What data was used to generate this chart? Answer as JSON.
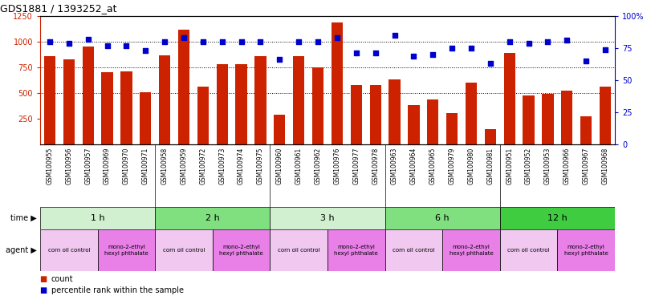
{
  "title": "GDS1881 / 1393252_at",
  "samples": [
    "GSM100955",
    "GSM100956",
    "GSM100957",
    "GSM100969",
    "GSM100970",
    "GSM100971",
    "GSM100958",
    "GSM100959",
    "GSM100972",
    "GSM100973",
    "GSM100974",
    "GSM100975",
    "GSM100960",
    "GSM100961",
    "GSM100962",
    "GSM100976",
    "GSM100977",
    "GSM100978",
    "GSM100963",
    "GSM100964",
    "GSM100965",
    "GSM100979",
    "GSM100980",
    "GSM100981",
    "GSM100951",
    "GSM100952",
    "GSM100953",
    "GSM100966",
    "GSM100967",
    "GSM100968"
  ],
  "counts": [
    860,
    825,
    950,
    700,
    710,
    505,
    870,
    1120,
    565,
    780,
    785,
    860,
    290,
    860,
    750,
    1190,
    575,
    575,
    630,
    380,
    440,
    305,
    605,
    145,
    890,
    475,
    490,
    520,
    270,
    565
  ],
  "percentiles": [
    80,
    79,
    82,
    77,
    77,
    73,
    80,
    83,
    80,
    80,
    80,
    80,
    66,
    80,
    80,
    83,
    71,
    71,
    85,
    69,
    70,
    75,
    75,
    63,
    80,
    79,
    80,
    81,
    65,
    74
  ],
  "time_groups": [
    {
      "label": "1 h",
      "start": 0,
      "end": 6,
      "color": "#d0f0d0"
    },
    {
      "label": "2 h",
      "start": 6,
      "end": 12,
      "color": "#80e080"
    },
    {
      "label": "3 h",
      "start": 12,
      "end": 18,
      "color": "#d0f0d0"
    },
    {
      "label": "6 h",
      "start": 18,
      "end": 24,
      "color": "#80e080"
    },
    {
      "label": "12 h",
      "start": 24,
      "end": 30,
      "color": "#40cc40"
    }
  ],
  "agent_groups": [
    {
      "label": "corn oil control",
      "start": 0,
      "end": 3,
      "color": "#f0c8f0"
    },
    {
      "label": "mono-2-ethyl\nhexyl phthalate",
      "start": 3,
      "end": 6,
      "color": "#e880e8"
    },
    {
      "label": "corn oil control",
      "start": 6,
      "end": 9,
      "color": "#f0c8f0"
    },
    {
      "label": "mono-2-ethyl\nhexyl phthalate",
      "start": 9,
      "end": 12,
      "color": "#e880e8"
    },
    {
      "label": "corn oil control",
      "start": 12,
      "end": 15,
      "color": "#f0c8f0"
    },
    {
      "label": "mono-2-ethyl\nhexyl phthalate",
      "start": 15,
      "end": 18,
      "color": "#e880e8"
    },
    {
      "label": "corn oil control",
      "start": 18,
      "end": 21,
      "color": "#f0c8f0"
    },
    {
      "label": "mono-2-ethyl\nhexyl phthalate",
      "start": 21,
      "end": 24,
      "color": "#e880e8"
    },
    {
      "label": "corn oil control",
      "start": 24,
      "end": 27,
      "color": "#f0c8f0"
    },
    {
      "label": "mono-2-ethyl\nhexyl phthalate",
      "start": 27,
      "end": 30,
      "color": "#e880e8"
    }
  ],
  "bar_color": "#cc2200",
  "dot_color": "#0000cc",
  "left_ylim": [
    0,
    1250
  ],
  "left_yticks": [
    250,
    500,
    750,
    1000,
    1250
  ],
  "right_ylim": [
    0,
    100
  ],
  "right_yticks": [
    0,
    25,
    50,
    75,
    100
  ],
  "bg_color": "#ffffff",
  "bar_width": 0.6
}
